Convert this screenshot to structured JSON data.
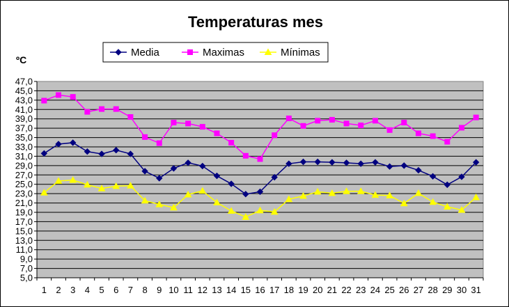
{
  "chart_data": {
    "type": "line",
    "title": "Temperaturas mes",
    "ylabel": "ºC",
    "xlabel": "",
    "ylim": [
      5,
      47
    ],
    "y_tick_labels": [
      "5,0",
      "7,0",
      "9,0",
      "11,0",
      "13,0",
      "15,0",
      "17,0",
      "19,0",
      "21,0",
      "23,0",
      "25,0",
      "27,0",
      "29,0",
      "31,0",
      "33,0",
      "35,0",
      "37,0",
      "39,0",
      "41,0",
      "43,0",
      "45,0",
      "47,0"
    ],
    "categories": [
      "1",
      "2",
      "3",
      "4",
      "5",
      "6",
      "7",
      "8",
      "9",
      "10",
      "11",
      "12",
      "13",
      "14",
      "15",
      "16",
      "17",
      "18",
      "19",
      "20",
      "21",
      "22",
      "23",
      "24",
      "25",
      "26",
      "27",
      "28",
      "29",
      "30",
      "31"
    ],
    "grid": true,
    "legend_position": "top",
    "plot_background": "#C0C0C0",
    "series": [
      {
        "name": "Media",
        "color": "#000080",
        "marker": "diamond",
        "values": [
          31.6,
          33.6,
          33.9,
          32.0,
          31.5,
          32.3,
          31.5,
          27.8,
          26.3,
          28.4,
          29.6,
          28.9,
          26.8,
          25.1,
          22.9,
          23.4,
          26.5,
          29.4,
          29.8,
          29.8,
          29.7,
          29.6,
          29.4,
          29.7,
          28.8,
          29.0,
          28.0,
          26.7,
          24.9,
          26.6,
          29.7
        ]
      },
      {
        "name": "Maximas",
        "color": "#FF00FF",
        "marker": "square",
        "values": [
          42.9,
          44.1,
          43.7,
          40.5,
          41.1,
          41.1,
          39.4,
          35.1,
          33.8,
          38.2,
          38.0,
          37.3,
          35.9,
          33.9,
          31.1,
          30.4,
          35.5,
          39.1,
          37.5,
          38.6,
          38.8,
          38.0,
          37.6,
          38.6,
          36.6,
          38.2,
          35.9,
          35.3,
          34.1,
          37.1,
          39.3
        ]
      },
      {
        "name": "Mínimas",
        "color": "#FFFF00",
        "marker": "triangle",
        "values": [
          23.2,
          25.7,
          25.9,
          24.9,
          24.1,
          24.6,
          24.7,
          21.5,
          20.7,
          20.0,
          22.8,
          23.6,
          21.1,
          19.3,
          18.0,
          19.4,
          19.1,
          21.8,
          22.5,
          23.4,
          23.1,
          23.5,
          23.5,
          22.7,
          22.6,
          20.9,
          23.1,
          21.2,
          20.2,
          19.5,
          22.2
        ]
      }
    ]
  }
}
